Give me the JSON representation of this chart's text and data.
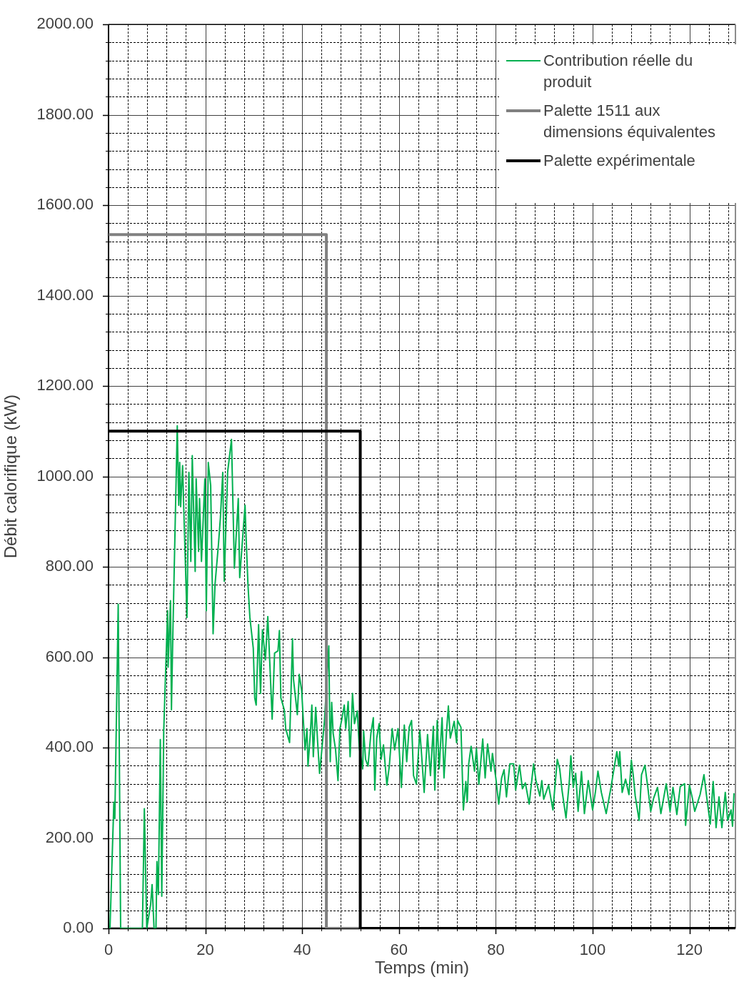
{
  "chart_data": {
    "type": "line",
    "xlabel": "Temps (min)",
    "ylabel": "Débit calorifique (kW)",
    "xlim": [
      0,
      129.5
    ],
    "xticks": [
      0,
      {
        "value": 4,
        "label": null
      },
      {
        "value": 8,
        "label": null
      },
      {
        "value": 12,
        "label": null
      },
      {
        "value": 16,
        "label": null
      },
      20,
      {
        "value": 24,
        "label": null
      },
      {
        "value": 28,
        "label": null
      },
      {
        "value": 32,
        "label": null
      },
      {
        "value": 36,
        "label": null
      },
      40,
      {
        "value": 44,
        "label": null
      },
      {
        "value": 48,
        "label": null
      },
      {
        "value": 52,
        "label": null
      },
      {
        "value": 56,
        "label": null
      },
      60,
      {
        "value": 64,
        "label": null
      },
      {
        "value": 68,
        "label": null
      },
      {
        "value": 72,
        "label": null
      },
      {
        "value": 76,
        "label": null
      },
      80,
      {
        "value": 84,
        "label": null
      },
      {
        "value": 88,
        "label": null
      },
      {
        "value": 92,
        "label": null
      },
      {
        "value": 96,
        "label": null
      },
      100,
      {
        "value": 104,
        "label": null
      },
      {
        "value": 108,
        "label": null
      },
      {
        "value": 112,
        "label": null
      },
      {
        "value": 116,
        "label": null
      },
      120,
      {
        "value": 124,
        "label": null
      },
      {
        "value": 128,
        "label": null
      }
    ],
    "ylim": [
      0,
      2000
    ],
    "yticks": [
      {
        "value": 0,
        "label": "0.00"
      },
      {
        "value": 40,
        "label": null
      },
      {
        "value": 80,
        "label": null
      },
      {
        "value": 120,
        "label": null
      },
      {
        "value": 160,
        "label": null
      },
      {
        "value": 200,
        "label": "200.00"
      },
      {
        "value": 240,
        "label": null
      },
      {
        "value": 280,
        "label": null
      },
      {
        "value": 320,
        "label": null
      },
      {
        "value": 360,
        "label": null
      },
      {
        "value": 400,
        "label": "400.00"
      },
      {
        "value": 440,
        "label": null
      },
      {
        "value": 480,
        "label": null
      },
      {
        "value": 520,
        "label": null
      },
      {
        "value": 560,
        "label": null
      },
      {
        "value": 600,
        "label": "600.00"
      },
      {
        "value": 640,
        "label": null
      },
      {
        "value": 680,
        "label": null
      },
      {
        "value": 720,
        "label": null
      },
      {
        "value": 760,
        "label": null
      },
      {
        "value": 800,
        "label": "800.00"
      },
      {
        "value": 840,
        "label": null
      },
      {
        "value": 880,
        "label": null
      },
      {
        "value": 920,
        "label": null
      },
      {
        "value": 960,
        "label": null
      },
      {
        "value": 1000,
        "label": "1000.00"
      },
      {
        "value": 1040,
        "label": null
      },
      {
        "value": 1080,
        "label": null
      },
      {
        "value": 1120,
        "label": null
      },
      {
        "value": 1160,
        "label": null
      },
      {
        "value": 1200,
        "label": "1200.00"
      },
      {
        "value": 1240,
        "label": null
      },
      {
        "value": 1280,
        "label": null
      },
      {
        "value": 1320,
        "label": null
      },
      {
        "value": 1360,
        "label": null
      },
      {
        "value": 1400,
        "label": "1400.00"
      },
      {
        "value": 1440,
        "label": null
      },
      {
        "value": 1480,
        "label": null
      },
      {
        "value": 1520,
        "label": null
      },
      {
        "value": 1560,
        "label": null
      },
      {
        "value": 1600,
        "label": "1600.00"
      },
      {
        "value": 1640,
        "label": null
      },
      {
        "value": 1680,
        "label": null
      },
      {
        "value": 1720,
        "label": null
      },
      {
        "value": 1760,
        "label": null
      },
      {
        "value": 1800,
        "label": "1800.00"
      },
      {
        "value": 1840,
        "label": null
      },
      {
        "value": 1880,
        "label": null
      },
      {
        "value": 1920,
        "label": null
      },
      {
        "value": 1960,
        "label": null
      },
      {
        "value": 2000,
        "label": "2000.00"
      }
    ],
    "grid": true,
    "legend": "top right",
    "marker": "none",
    "line_style": "solid",
    "series": [
      {
        "name": "Contribution réelle du produit",
        "color": "#00b050",
        "x": [
          0.3,
          1.1,
          1.3,
          2.0,
          2.5,
          7.0,
          7.4,
          7.9,
          8.7,
          9.0,
          9.4,
          9.8,
          10.0,
          10.3,
          10.7,
          11.0,
          11.4,
          12.2,
          12.3,
          12.8,
          13.0,
          13.3,
          14.2,
          14.5,
          14.7,
          14.9,
          15.3,
          15.7,
          16.2,
          16.6,
          17.0,
          17.3,
          17.9,
          18.1,
          18.6,
          18.8,
          19.2,
          19.9,
          20.2,
          20.6,
          21.1,
          21.6,
          22.0,
          22.7,
          23.1,
          23.6,
          23.9,
          24.6,
          25.4,
          26.0,
          26.8,
          27.1,
          28.2,
          28.4,
          28.8,
          29.2,
          29.9,
          30.2,
          30.5,
          31.0,
          31.4,
          31.8,
          32.4,
          32.9,
          33.5,
          33.8,
          34.3,
          35.0,
          35.3,
          35.6,
          36.3,
          36.6,
          37.4,
          38.0,
          38.2,
          39.0,
          39.4,
          39.9,
          40.2,
          40.6,
          41.0,
          41.2,
          41.7,
          42.0,
          42.3,
          42.8,
          43.2,
          43.6,
          44.1,
          44.6,
          45.5,
          45.8,
          46.1,
          46.4,
          46.9,
          47.4,
          47.8,
          48.2,
          48.7,
          49.0,
          49.5,
          49.9,
          50.4,
          50.8,
          51.4,
          51.8,
          52.5,
          52.7,
          53.1,
          53.6,
          54.2,
          54.7,
          55.0,
          55.4,
          55.9,
          56.3,
          56.8,
          57.5,
          58.0,
          58.6,
          59.1,
          59.8,
          60.5,
          61.1,
          61.6,
          62.1,
          62.6,
          63.0,
          63.6,
          64.3,
          64.6,
          65.2,
          65.9,
          66.5,
          67.1,
          67.4,
          67.9,
          68.3,
          68.9,
          69.3,
          69.8,
          70.2,
          70.6,
          71.4,
          71.9,
          72.1,
          72.8,
          73.3,
          73.8,
          74.1,
          74.4,
          74.9,
          75.6,
          76.0,
          76.5,
          77.3,
          77.8,
          78.3,
          79.0,
          79.3,
          80.0,
          80.6,
          81.2,
          81.7,
          82.2,
          82.9,
          83.7,
          84.1,
          84.9,
          85.5,
          86.1,
          86.9,
          87.8,
          88.3,
          89.1,
          89.5,
          89.9,
          90.9,
          91.8,
          92.7,
          93.2,
          93.7,
          94.5,
          95.2,
          95.5,
          96.0,
          96.5,
          97.0,
          97.7,
          98.3,
          99.1,
          100.0,
          100.6,
          101.1,
          101.8,
          102.8,
          103.8,
          104.3,
          105.0,
          105.4,
          105.6,
          106.1,
          106.8,
          107.5,
          108.0,
          108.4,
          108.8,
          109.6,
          110.1,
          110.8,
          111.4,
          112.0,
          112.6,
          113.4,
          114.1,
          115.2,
          116.0,
          116.6,
          117.4,
          118.1,
          119.0,
          119.2,
          120.0,
          120.6,
          121.1,
          122.2,
          123.0,
          123.5,
          124.3,
          124.9,
          125.5,
          126.1,
          126.7,
          127.4,
          127.9,
          128.6,
          128.9,
          129.2
        ],
        "values": [
          0,
          279,
          243,
          717,
          0,
          0,
          265,
          0,
          53,
          97,
          0,
          0,
          148,
          75,
          418,
          71,
          436,
          703,
          578,
          725,
          484,
          659,
          1112,
          936,
          1031,
          933,
          1024,
          871,
          688,
          1009,
          812,
          1046,
          790,
          995,
          834,
          951,
          812,
          995,
          703,
          1031,
          980,
          652,
          761,
          849,
          907,
          1009,
          768,
          1009,
          1082,
          797,
          951,
          776,
          936,
          871,
          761,
          688,
          620,
          510,
          494,
          672,
          520,
          661,
          594,
          690,
          541,
          463,
          609,
          614,
          659,
          510,
          484,
          442,
          411,
          641,
          552,
          473,
          562,
          526,
          468,
          395,
          442,
          359,
          432,
          494,
          380,
          489,
          411,
          343,
          400,
          458,
          625,
          369,
          500,
          432,
          395,
          327,
          442,
          463,
          494,
          442,
          502,
          380,
          520,
          453,
          481,
          400,
          353,
          437,
          374,
          359,
          432,
          466,
          306,
          421,
          453,
          374,
          406,
          317,
          359,
          442,
          395,
          442,
          312,
          450,
          369,
          445,
          460,
          338,
          319,
          437,
          395,
          301,
          429,
          338,
          447,
          306,
          460,
          353,
          466,
          333,
          432,
          492,
          421,
          458,
          411,
          460,
          445,
          262,
          325,
          280,
          364,
          403,
          348,
          398,
          319,
          419,
          333,
          408,
          348,
          387,
          333,
          275,
          333,
          351,
          291,
          364,
          364,
          306,
          361,
          309,
          322,
          275,
          364,
          327,
          293,
          327,
          286,
          317,
          262,
          374,
          353,
          304,
          244,
          327,
          382,
          312,
          343,
          259,
          347,
          254,
          327,
          262,
          304,
          348,
          301,
          254,
          312,
          346,
          391,
          359,
          391,
          301,
          330,
          296,
          372,
          338,
          293,
          239,
          340,
          361,
          312,
          259,
          288,
          312,
          254,
          320,
          259,
          312,
          252,
          314,
          320,
          228,
          317,
          288,
          259,
          296,
          340,
          296,
          231,
          325,
          223,
          291,
          223,
          301,
          239,
          262,
          226,
          299
        ]
      },
      {
        "name": "Palette 1511 aux dimensions équivalentes",
        "color": "#808080",
        "x": [
          0,
          45,
          45,
          52
        ],
        "values": [
          1535,
          1535,
          0,
          0
        ]
      },
      {
        "name": "Palette expérimentale",
        "color": "#000000",
        "x": [
          0,
          52,
          52,
          129.5
        ],
        "values": [
          1100,
          1100,
          0,
          0
        ]
      }
    ]
  }
}
